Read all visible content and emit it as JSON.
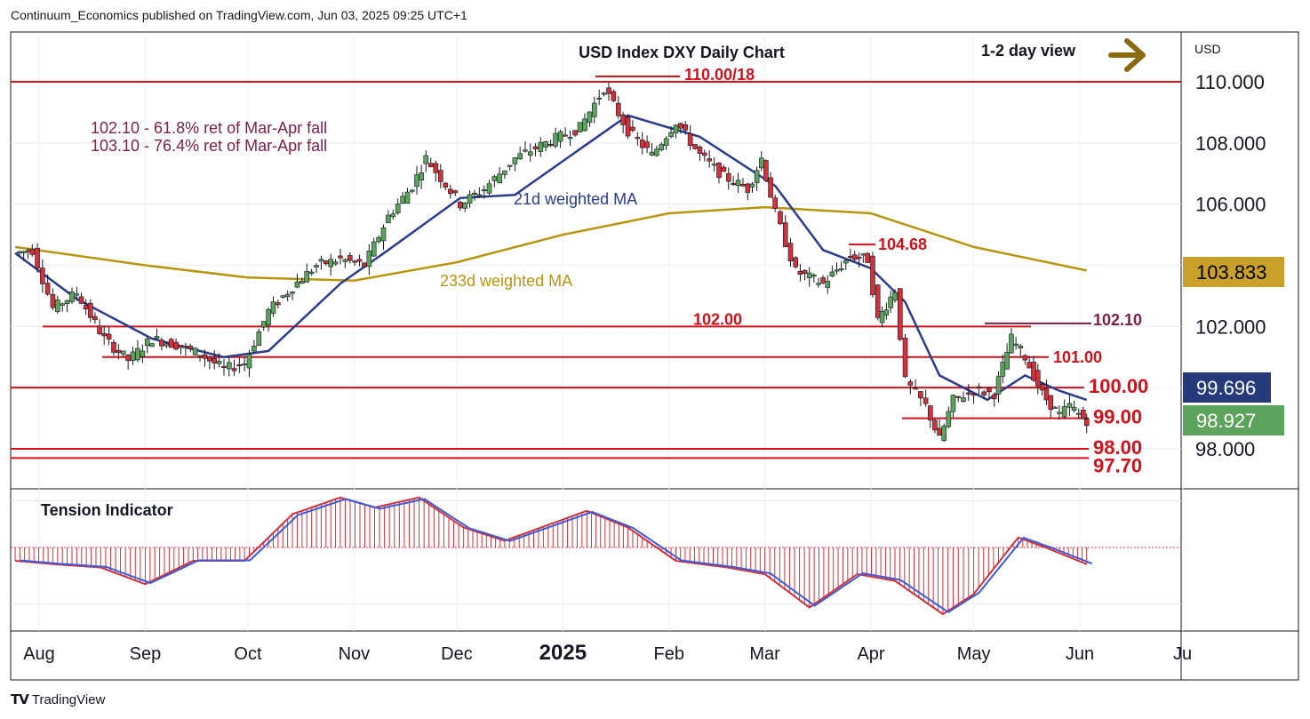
{
  "header": {
    "publisher": "Continuum_Economics published on TradingView.com, Jun 03, 2025 09:25 UTC+1"
  },
  "branding": {
    "logo_text": "TradingView"
  },
  "chart_data": {
    "type": "candlestick",
    "title": "USD Index DXY Daily Chart",
    "view_label": "1-2 day view",
    "view_arrow": "right",
    "currency_label": "USD",
    "y_range": [
      97.0,
      111.5
    ],
    "y_ticks": [
      "110.000",
      "108.000",
      "106.000",
      "102.000",
      "98.000"
    ],
    "y_tick_values": [
      110,
      108,
      106,
      102,
      98
    ],
    "x_months": [
      "Aug",
      "Sep",
      "Oct",
      "Nov",
      "Dec",
      "2025",
      "Feb",
      "Mar",
      "Apr",
      "May",
      "Jun",
      "Ju"
    ],
    "price_badges": [
      {
        "label": "103.833",
        "value": 103.833,
        "color": "#c8a02a",
        "text_color": "#000000"
      },
      {
        "label": "99.696",
        "value": 99.696,
        "color": "#253a7a",
        "text_color": "#ffffff"
      },
      {
        "label": "98.927",
        "value": 98.927,
        "color": "#5ea35c",
        "text_color": "#ffffff"
      }
    ],
    "levels": [
      {
        "label": "110.00/18",
        "value": 110.0
      },
      {
        "label": "104.68",
        "value": 104.68
      },
      {
        "label": "102.10",
        "value": 102.1
      },
      {
        "label": "102.00",
        "value": 102.0
      },
      {
        "label": "101.00",
        "value": 101.0
      },
      {
        "label": "100.00",
        "value": 100.0
      },
      {
        "label": "99.00",
        "value": 99.0
      },
      {
        "label": "98.00",
        "value": 98.0
      },
      {
        "label": "97.70",
        "value": 97.7
      }
    ],
    "annotations": {
      "retracement_1": "102.10 - 61.8% ret of Mar-Apr fall",
      "retracement_2": "103.10 - 76.4% ret of Mar-Apr fall",
      "ma21_label": "21d weighted MA",
      "ma233_label": "233d weighted MA",
      "indicator_title": "Tension Indicator"
    },
    "series_colors": {
      "up": "#5ea35c",
      "down": "#d0323b",
      "wick": "#131722",
      "ma21": "#2b3c8c",
      "ma233": "#b8940f",
      "level": "#d0101a",
      "level_text": "#d0101a",
      "annotation": "#7a1f4a"
    },
    "price_path": [
      [
        "2024-07-25",
        104.4
      ],
      [
        "2024-07-30",
        104.5
      ],
      [
        "2024-08-05",
        102.6
      ],
      [
        "2024-08-12",
        103.1
      ],
      [
        "2024-08-20",
        101.6
      ],
      [
        "2024-08-27",
        100.9
      ],
      [
        "2024-09-03",
        101.6
      ],
      [
        "2024-09-10",
        101.4
      ],
      [
        "2024-09-17",
        101.1
      ],
      [
        "2024-09-24",
        100.6
      ],
      [
        "2024-09-30",
        100.8
      ],
      [
        "2024-10-07",
        102.5
      ],
      [
        "2024-10-14",
        103.3
      ],
      [
        "2024-10-21",
        104.0
      ],
      [
        "2024-10-28",
        104.2
      ],
      [
        "2024-11-04",
        104.0
      ],
      [
        "2024-11-11",
        105.6
      ],
      [
        "2024-11-18",
        106.6
      ],
      [
        "2024-11-22",
        107.5
      ],
      [
        "2024-12-02",
        106.0
      ],
      [
        "2024-12-09",
        106.5
      ],
      [
        "2024-12-18",
        107.5
      ],
      [
        "2024-12-27",
        108.0
      ],
      [
        "2025-01-06",
        108.5
      ],
      [
        "2025-01-13",
        109.8
      ],
      [
        "2025-01-20",
        108.4
      ],
      [
        "2025-01-27",
        107.6
      ],
      [
        "2025-02-03",
        108.7
      ],
      [
        "2025-02-10",
        107.6
      ],
      [
        "2025-02-17",
        106.9
      ],
      [
        "2025-02-24",
        106.5
      ],
      [
        "2025-02-28",
        107.5
      ],
      [
        "2025-03-04",
        105.7
      ],
      [
        "2025-03-10",
        103.8
      ],
      [
        "2025-03-18",
        103.4
      ],
      [
        "2025-03-26",
        104.3
      ],
      [
        "2025-03-31",
        104.2
      ],
      [
        "2025-04-03",
        102.2
      ],
      [
        "2025-04-08",
        103.2
      ],
      [
        "2025-04-11",
        100.2
      ],
      [
        "2025-04-17",
        99.4
      ],
      [
        "2025-04-21",
        98.3
      ],
      [
        "2025-04-25",
        99.6
      ],
      [
        "2025-05-01",
        99.9
      ],
      [
        "2025-05-07",
        99.8
      ],
      [
        "2025-05-12",
        101.6
      ],
      [
        "2025-05-16",
        101.0
      ],
      [
        "2025-05-21",
        99.8
      ],
      [
        "2025-05-26",
        99.1
      ],
      [
        "2025-05-29",
        99.4
      ],
      [
        "2025-06-02",
        99.0
      ],
      [
        "2025-06-03",
        98.93
      ]
    ],
    "ma21_path": [
      [
        "2024-07-25",
        104.4
      ],
      [
        "2024-08-12",
        102.9
      ],
      [
        "2024-09-03",
        101.6
      ],
      [
        "2024-09-24",
        101.0
      ],
      [
        "2024-10-07",
        101.2
      ],
      [
        "2024-10-28",
        103.4
      ],
      [
        "2024-11-11",
        104.5
      ],
      [
        "2024-12-02",
        106.2
      ],
      [
        "2024-12-18",
        106.3
      ],
      [
        "2025-01-06",
        107.8
      ],
      [
        "2025-01-20",
        108.9
      ],
      [
        "2025-02-10",
        108.2
      ],
      [
        "2025-03-04",
        106.6
      ],
      [
        "2025-03-18",
        104.5
      ],
      [
        "2025-04-01",
        103.9
      ],
      [
        "2025-04-11",
        102.8
      ],
      [
        "2025-04-21",
        100.4
      ],
      [
        "2025-05-05",
        99.6
      ],
      [
        "2025-05-16",
        100.4
      ],
      [
        "2025-05-26",
        99.9
      ],
      [
        "2025-06-03",
        99.6
      ]
    ],
    "ma233_path": [
      [
        "2024-07-25",
        104.6
      ],
      [
        "2024-09-01",
        104.0
      ],
      [
        "2024-10-01",
        103.6
      ],
      [
        "2024-11-01",
        103.5
      ],
      [
        "2024-12-01",
        104.1
      ],
      [
        "2025-01-01",
        105.0
      ],
      [
        "2025-02-01",
        105.7
      ],
      [
        "2025-03-01",
        105.9
      ],
      [
        "2025-04-01",
        105.7
      ],
      [
        "2025-05-01",
        104.6
      ],
      [
        "2025-06-03",
        103.83
      ]
    ],
    "tension_indicator": {
      "y_range": [
        -1.0,
        1.0
      ],
      "zero": 0,
      "path": [
        [
          "2024-07-25",
          -0.2
        ],
        [
          "2024-08-05",
          -0.25
        ],
        [
          "2024-08-19",
          -0.3
        ],
        [
          "2024-09-01",
          -0.55
        ],
        [
          "2024-09-15",
          -0.2
        ],
        [
          "2024-09-30",
          -0.2
        ],
        [
          "2024-10-14",
          0.5
        ],
        [
          "2024-10-28",
          0.75
        ],
        [
          "2024-11-07",
          0.6
        ],
        [
          "2024-11-20",
          0.75
        ],
        [
          "2024-12-03",
          0.3
        ],
        [
          "2024-12-15",
          0.1
        ],
        [
          "2025-01-08",
          0.55
        ],
        [
          "2025-01-20",
          0.3
        ],
        [
          "2025-02-03",
          -0.2
        ],
        [
          "2025-02-18",
          -0.3
        ],
        [
          "2025-03-01",
          -0.4
        ],
        [
          "2025-03-14",
          -0.9
        ],
        [
          "2025-03-28",
          -0.4
        ],
        [
          "2025-04-08",
          -0.5
        ],
        [
          "2025-04-22",
          -1.0
        ],
        [
          "2025-05-01",
          -0.7
        ],
        [
          "2025-05-14",
          0.15
        ],
        [
          "2025-05-22",
          0.0
        ],
        [
          "2025-06-03",
          -0.25
        ]
      ]
    }
  }
}
